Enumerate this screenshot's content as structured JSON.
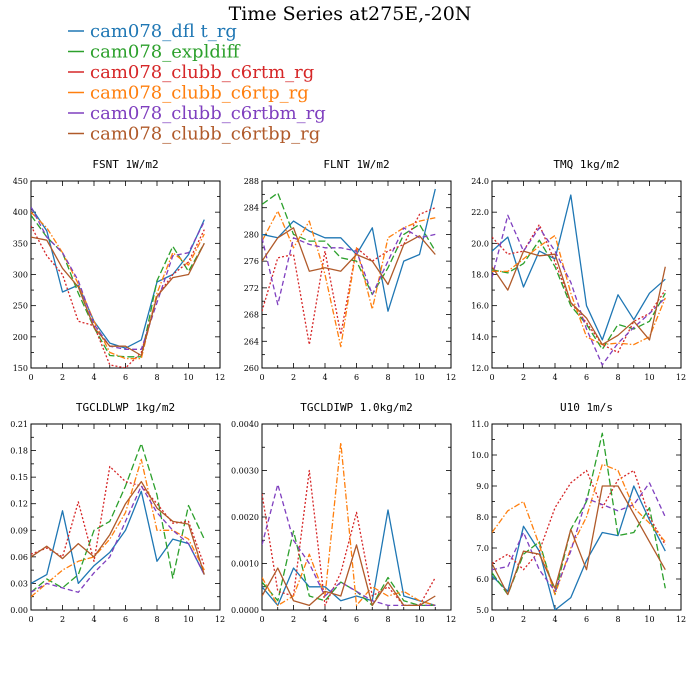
{
  "figure": {
    "title": "Time Series at275E,-20N"
  },
  "legend": [
    {
      "name": "cam078_dfl t_rg",
      "color": "#1f77b4",
      "dash": "solid"
    },
    {
      "name": "cam078_expldiff",
      "color": "#2ca02c",
      "dash": "longdash"
    },
    {
      "name": "cam078_clubb_c6rtm_rg",
      "color": "#d62728",
      "dash": "dot"
    },
    {
      "name": "cam078_clubb_c6rtp_rg",
      "color": "#ff7f0e",
      "dash": "dashdot"
    },
    {
      "name": "cam078_clubb_c6rtbm_rg",
      "color": "#7f3fbf",
      "dash": "dash"
    },
    {
      "name": "cam078_clubb_c6rtbp_rg",
      "color": "#b05a2a",
      "dash": "solid"
    }
  ],
  "chart_data": [
    {
      "type": "line",
      "title": "FSNT   1W/m2",
      "x": [
        0,
        1,
        2,
        3,
        4,
        5,
        6,
        7,
        8,
        9,
        10,
        11
      ],
      "xlim": [
        0,
        12
      ],
      "xticks": [
        "0",
        "2",
        "4",
        "6",
        "8",
        "10",
        "12"
      ],
      "ylim": [
        150,
        450
      ],
      "yticks": [
        "150",
        "200",
        "250",
        "300",
        "350",
        "400",
        "450"
      ],
      "series": [
        {
          "values": [
            408,
            370,
            272,
            283,
            225,
            190,
            182,
            195,
            288,
            300,
            332,
            388
          ]
        },
        {
          "values": [
            395,
            360,
            335,
            270,
            215,
            170,
            168,
            168,
            290,
            345,
            305,
            350
          ]
        },
        {
          "values": [
            378,
            330,
            300,
            225,
            218,
            155,
            150,
            175,
            265,
            300,
            320,
            372
          ]
        },
        {
          "values": [
            400,
            375,
            335,
            285,
            225,
            175,
            165,
            165,
            270,
            335,
            315,
            365
          ]
        },
        {
          "values": [
            408,
            360,
            335,
            290,
            220,
            185,
            180,
            180,
            255,
            330,
            335,
            385
          ]
        },
        {
          "values": [
            360,
            355,
            310,
            280,
            215,
            185,
            185,
            170,
            265,
            295,
            300,
            350
          ]
        }
      ]
    },
    {
      "type": "line",
      "title": "FLNT   1W/m2",
      "x": [
        0,
        1,
        2,
        3,
        4,
        5,
        6,
        7,
        8,
        9,
        10,
        11
      ],
      "xlim": [
        0,
        12
      ],
      "xticks": [
        "0",
        "2",
        "4",
        "6",
        "8",
        "10",
        "12"
      ],
      "ylim": [
        260,
        288
      ],
      "yticks": [
        "260",
        "264",
        "268",
        "272",
        "276",
        "280",
        "284",
        "288"
      ],
      "series": [
        {
          "values": [
            280,
            279.5,
            282,
            280.5,
            279.5,
            279.5,
            277,
            281,
            268.5,
            276,
            277,
            286.8
          ]
        },
        {
          "values": [
            284.5,
            286.2,
            280,
            279,
            279,
            276.5,
            276,
            271,
            275,
            280,
            281.5,
            277.5
          ]
        },
        {
          "values": [
            268.5,
            276.5,
            277,
            263.5,
            277.5,
            265,
            278,
            276,
            277.5,
            278.5,
            283,
            284
          ]
        },
        {
          "values": [
            279,
            283.5,
            278,
            282,
            274,
            263.2,
            278,
            268.8,
            279.5,
            281,
            282,
            282.5
          ]
        },
        {
          "values": [
            279.5,
            269.5,
            279.5,
            278.5,
            278,
            278,
            277.5,
            271,
            276,
            281,
            279.5,
            280
          ]
        },
        {
          "values": [
            276,
            279.5,
            281,
            274.5,
            275,
            274.5,
            277,
            276,
            272.5,
            278.5,
            279.8,
            277
          ]
        }
      ]
    },
    {
      "type": "line",
      "title": "TMQ   1kg/m2",
      "x": [
        0,
        1,
        2,
        3,
        4,
        5,
        6,
        7,
        8,
        9,
        10,
        11
      ],
      "xlim": [
        0,
        12
      ],
      "xticks": [
        "0",
        "2",
        "4",
        "6",
        "8",
        "10",
        "12"
      ],
      "ylim": [
        12,
        24
      ],
      "yticks": [
        "12.0",
        "14.0",
        "16.0",
        "18.0",
        "20.0",
        "22.0",
        "24.0"
      ],
      "series": [
        {
          "values": [
            19.5,
            20.4,
            17.2,
            19.5,
            19,
            23.1,
            16,
            13.8,
            16.7,
            15.1,
            16.8,
            17.7
          ]
        },
        {
          "values": [
            18.3,
            18.1,
            18.7,
            20.2,
            18.5,
            16,
            14.8,
            13.2,
            14.8,
            14.5,
            15,
            16.8
          ]
        },
        {
          "values": [
            20.4,
            19.3,
            19.5,
            21.2,
            18.8,
            16.2,
            14.9,
            13.5,
            13,
            15,
            15.5,
            17
          ]
        },
        {
          "values": [
            18.2,
            18.2,
            19,
            19.8,
            20.5,
            16.8,
            14,
            13.5,
            13.6,
            13.5,
            14,
            16.5
          ]
        },
        {
          "values": [
            17.8,
            21.8,
            19.5,
            21,
            19.5,
            17.5,
            14.5,
            12.2,
            13.6,
            14.6,
            15.5,
            16.5
          ]
        },
        {
          "values": [
            18.5,
            17,
            19.5,
            19.2,
            19.3,
            16.2,
            15.2,
            13.5,
            14.1,
            15,
            13.8,
            18.5
          ]
        }
      ]
    },
    {
      "type": "line",
      "title": "TGCLDLWP   1kg/m2",
      "x": [
        0,
        1,
        2,
        3,
        4,
        5,
        6,
        7,
        8,
        9,
        10,
        11
      ],
      "xlim": [
        0,
        12
      ],
      "xticks": [
        "0",
        "2",
        "4",
        "6",
        "8",
        "10",
        "12"
      ],
      "ylim": [
        0,
        0.21
      ],
      "yticks": [
        "0.00",
        "0.03",
        "0.06",
        "0.09",
        "0.12",
        "0.15",
        "0.18",
        "0.21"
      ],
      "series": [
        {
          "values": [
            0.03,
            0.04,
            0.112,
            0.03,
            0.05,
            0.065,
            0.09,
            0.134,
            0.055,
            0.08,
            0.075,
            0.04
          ]
        },
        {
          "values": [
            0.02,
            0.035,
            0.025,
            0.04,
            0.09,
            0.1,
            0.14,
            0.188,
            0.13,
            0.036,
            0.118,
            0.08
          ]
        },
        {
          "values": [
            0.063,
            0.07,
            0.06,
            0.122,
            0.055,
            0.162,
            0.145,
            0.14,
            0.12,
            0.098,
            0.1,
            0.05
          ]
        },
        {
          "values": [
            0.015,
            0.03,
            0.045,
            0.055,
            0.06,
            0.08,
            0.11,
            0.17,
            0.09,
            0.09,
            0.08,
            0.045
          ]
        },
        {
          "values": [
            0.02,
            0.03,
            0.025,
            0.02,
            0.042,
            0.06,
            0.1,
            0.14,
            0.11,
            0.09,
            0.075,
            0.04
          ]
        },
        {
          "values": [
            0.06,
            0.072,
            0.058,
            0.075,
            0.06,
            0.085,
            0.12,
            0.145,
            0.115,
            0.1,
            0.097,
            0.04
          ]
        }
      ]
    },
    {
      "type": "line",
      "title": "TGCLDIWP   1.0kg/m2",
      "x": [
        0,
        1,
        2,
        3,
        4,
        5,
        6,
        7,
        8,
        9,
        10,
        11
      ],
      "xlim": [
        0,
        12
      ],
      "xticks": [
        "0",
        "2",
        "4",
        "6",
        "8",
        "10",
        "12"
      ],
      "ylim": [
        0,
        0.004
      ],
      "yticks": [
        "0.0000",
        "0.0010",
        "0.0020",
        "0.0030",
        "0.0040"
      ],
      "series": [
        {
          "values": [
            0.0005,
            0.0001,
            0.0009,
            0.0005,
            0.0005,
            0.0002,
            0.0003,
            0.0002,
            0.00215,
            0.0003,
            0.0002,
            0.0001
          ]
        },
        {
          "values": [
            0.0006,
            0.0002,
            0.0017,
            0.0003,
            0.0002,
            0.0006,
            0.0004,
            0.0001,
            0.0007,
            0.0002,
            0.0001,
            0.0001
          ]
        },
        {
          "values": [
            0.0025,
            0.0004,
            0.0003,
            0.003,
            0.0001,
            0.0008,
            0.0021,
            0.0003,
            0.0005,
            0.0001,
            0.0001,
            0.0007
          ]
        },
        {
          "values": [
            0.0007,
            0.0001,
            0.0003,
            0.0012,
            0.0003,
            0.0036,
            0.0001,
            0.0005,
            0.0003,
            0.0004,
            0.0002,
            0.0001
          ]
        },
        {
          "values": [
            0.0014,
            0.0027,
            0.0015,
            0.001,
            0.0003,
            0.0006,
            0.0004,
            0.0002,
            0.0001,
            0.0001,
            0.0001,
            0.0001
          ]
        },
        {
          "values": [
            0.0003,
            0.0009,
            0.0002,
            0.0001,
            0.0004,
            0.0003,
            0.0014,
            0.0001,
            0.0006,
            0.0001,
            0.0001,
            0.0003
          ]
        }
      ]
    },
    {
      "type": "line",
      "title": "U10   1m/s",
      "x": [
        0,
        1,
        2,
        3,
        4,
        5,
        6,
        7,
        8,
        9,
        10,
        11
      ],
      "xlim": [
        0,
        12
      ],
      "xticks": [
        "0",
        "2",
        "4",
        "6",
        "8",
        "10",
        "12"
      ],
      "ylim": [
        5,
        11
      ],
      "yticks": [
        "5.0",
        "6.0",
        "7.0",
        "8.0",
        "9.0",
        "10.0",
        "11.0"
      ],
      "series": [
        {
          "values": [
            6.1,
            5.6,
            7.7,
            6.9,
            5.0,
            5.4,
            6.6,
            7.5,
            7.4,
            9,
            7.9,
            6.9
          ]
        },
        {
          "values": [
            6.2,
            5.5,
            6.8,
            7.2,
            5.5,
            7.6,
            8.5,
            10.7,
            7.4,
            7.5,
            8.3,
            5.7
          ]
        },
        {
          "values": [
            6.5,
            6.8,
            6.3,
            6.9,
            8.3,
            9.1,
            9.5,
            8.3,
            9.2,
            9.5,
            8,
            7.1
          ]
        },
        {
          "values": [
            7.5,
            8.2,
            8.5,
            7.1,
            5.5,
            7,
            8,
            9.7,
            9.5,
            8.3,
            7.8,
            7.2
          ]
        },
        {
          "values": [
            6.3,
            6.4,
            7.5,
            6.3,
            5.6,
            6.9,
            8.6,
            8.4,
            8.2,
            8.4,
            9.1,
            8
          ]
        },
        {
          "values": [
            6.5,
            5.5,
            6.9,
            6.8,
            5.7,
            7.6,
            6.3,
            9,
            9,
            8.1,
            7.2,
            6.3
          ]
        }
      ]
    }
  ]
}
